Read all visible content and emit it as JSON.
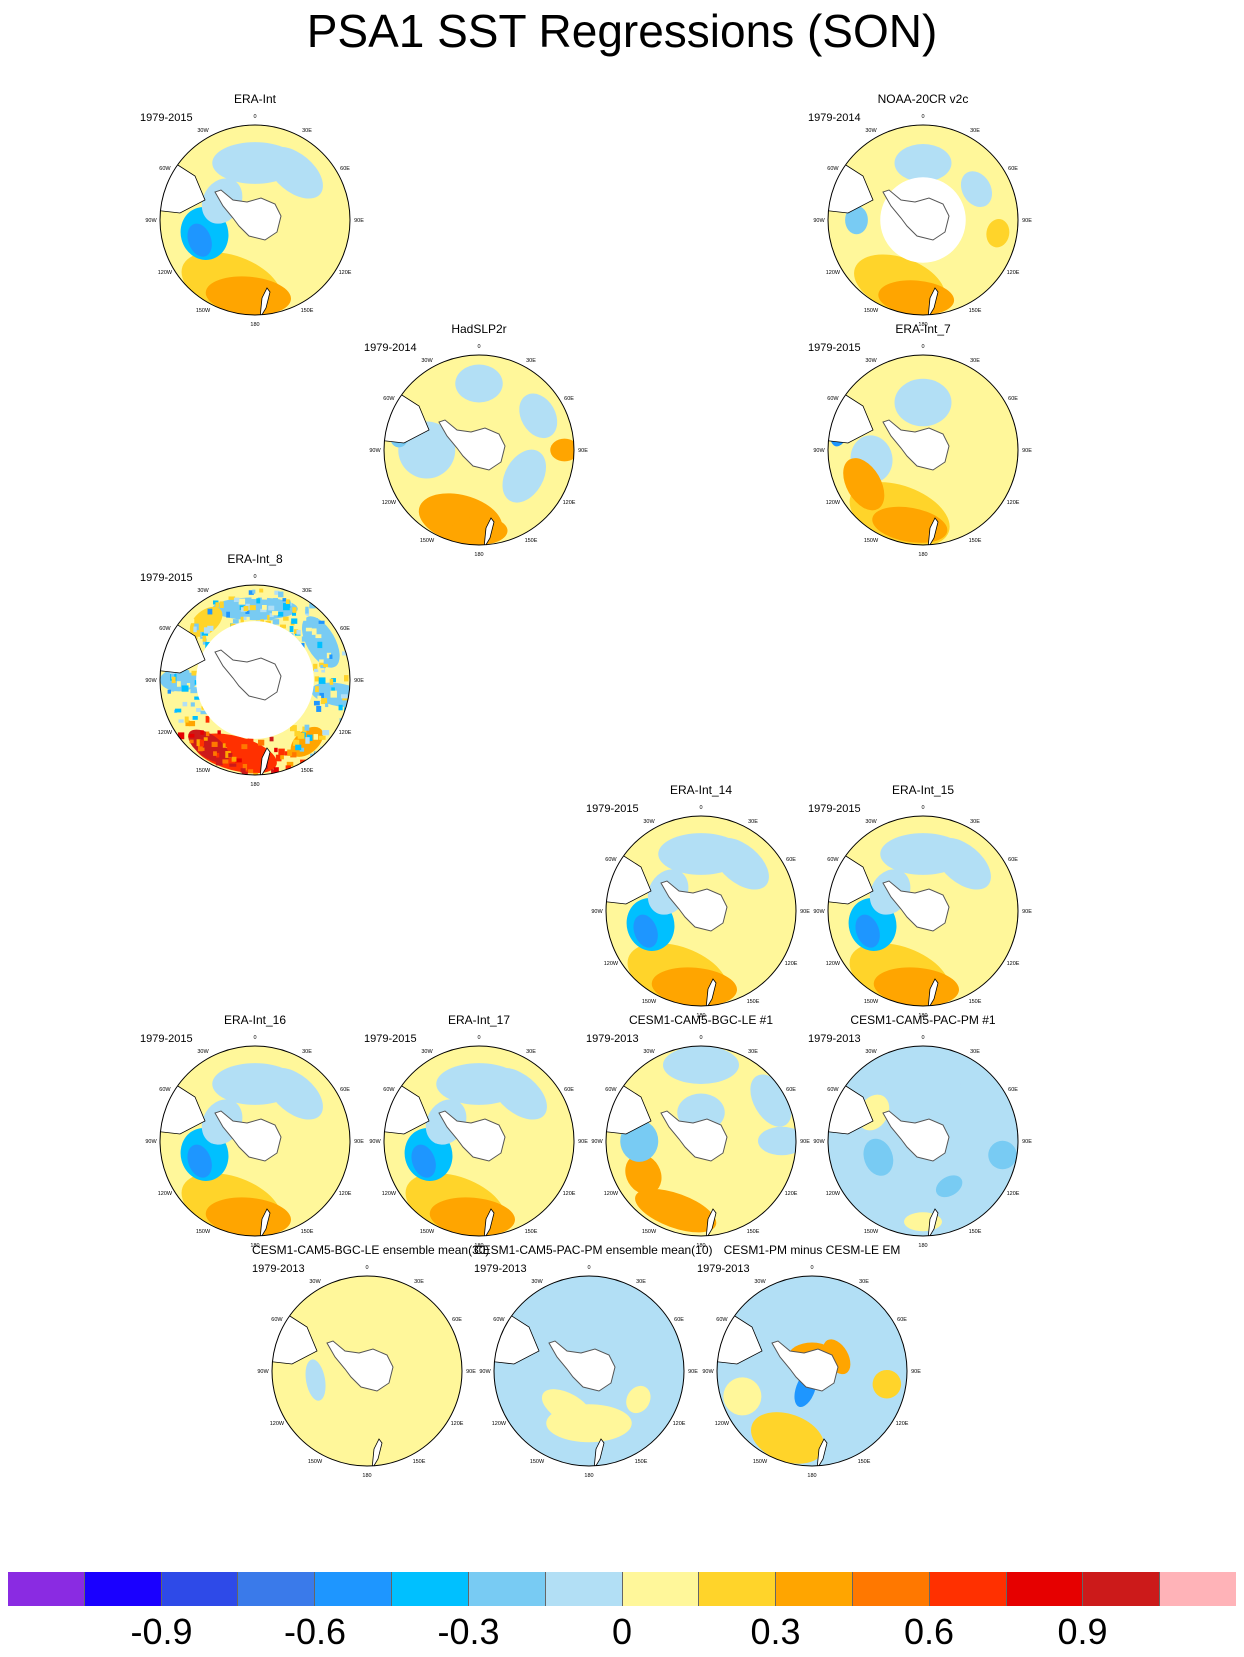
{
  "title": "PSA1 SST Regressions (SON)",
  "lon_labels": [
    "0",
    "30E",
    "60E",
    "90E",
    "120E",
    "150E",
    "180",
    "150W",
    "120W",
    "90W",
    "60W",
    "30W"
  ],
  "chart_data": {
    "type": "heatmap",
    "projection": "south polar stereographic",
    "panels": [
      {
        "name": "ERA-Int",
        "period": "1979-2015",
        "pattern": "era"
      },
      {
        "name": "NOAA-20CR v2c",
        "period": "1979-2014",
        "pattern": "noaa"
      },
      {
        "name": "HadSLP2r",
        "period": "1979-2014",
        "pattern": "hadslp"
      },
      {
        "name": "ERA-Int_7",
        "period": "1979-2015",
        "pattern": "era7"
      },
      {
        "name": "ERA-Int_8",
        "period": "1979-2015",
        "pattern": "era8"
      },
      {
        "name": "ERA-Int_14",
        "period": "1979-2015",
        "pattern": "era"
      },
      {
        "name": "ERA-Int_15",
        "period": "1979-2015",
        "pattern": "era"
      },
      {
        "name": "ERA-Int_16",
        "period": "1979-2015",
        "pattern": "era"
      },
      {
        "name": "ERA-Int_17",
        "period": "1979-2015",
        "pattern": "era"
      },
      {
        "name": "CESM1-CAM5-BGC-LE #1",
        "period": "1979-2013",
        "pattern": "bgc1"
      },
      {
        "name": "CESM1-CAM5-PAC-PM #1",
        "period": "1979-2013",
        "pattern": "pac1"
      },
      {
        "name": "CESM1-CAM5-BGC-LE ensemble mean(30)",
        "period": "1979-2013",
        "pattern": "bgcmean"
      },
      {
        "name": "CESM1-CAM5-PAC-PM ensemble mean(10)",
        "period": "1979-2013",
        "pattern": "pacmean"
      },
      {
        "name": "CESM1-PM minus CESM-LE EM",
        "period": "1979-2013",
        "pattern": "diff"
      }
    ],
    "colorbar": {
      "tick_labels": [
        "-0.9",
        "-0.6",
        "-0.3",
        "0",
        "0.3",
        "0.6",
        "0.9"
      ],
      "tick_values": [
        -0.9,
        -0.6,
        -0.3,
        0,
        0.3,
        0.6,
        0.9
      ],
      "colors": [
        "#8a2be2",
        "#1a00ff",
        "#2e4ae8",
        "#3a7aea",
        "#1e96ff",
        "#00c0ff",
        "#78cbf3",
        "#b2dff5",
        "#fff79a",
        "#ffd42a",
        "#ffa500",
        "#ff7800",
        "#ff3000",
        "#e60000",
        "#cc1a1a",
        "#ffb3b8"
      ]
    }
  }
}
